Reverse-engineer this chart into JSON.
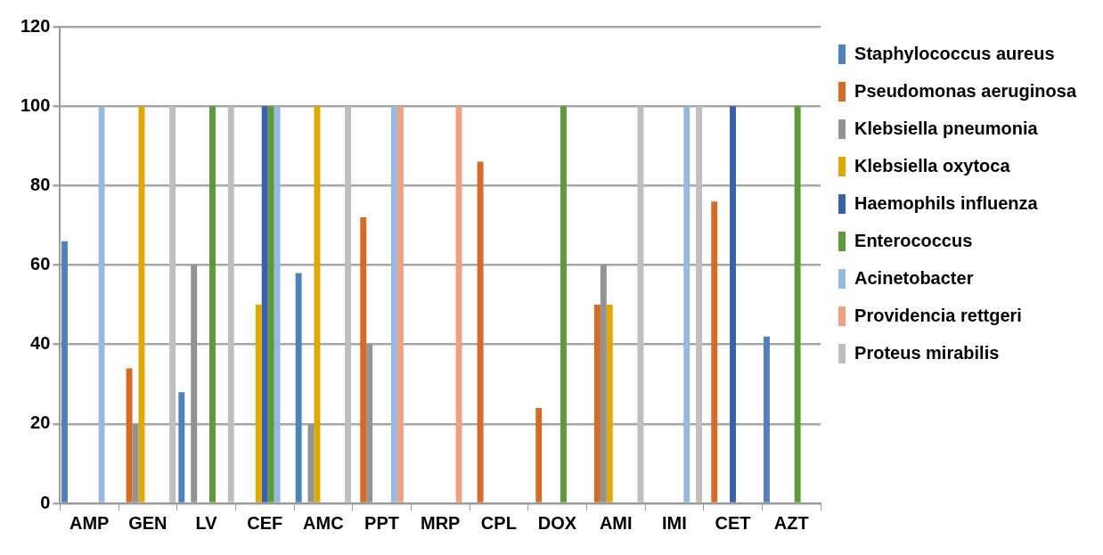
{
  "chart_data": {
    "type": "bar",
    "categories": [
      "AMP",
      "GEN",
      "LV",
      "CEF",
      "AMC",
      "PPT",
      "MRP",
      "CPL",
      "DOX",
      "AMI",
      "IMI",
      "CET",
      "AZT"
    ],
    "series": [
      {
        "name": "Staphylococcus aureus",
        "color": "#4f81bd",
        "values": [
          66,
          null,
          28,
          null,
          58,
          null,
          null,
          null,
          null,
          null,
          null,
          null,
          42
        ]
      },
      {
        "name": "Pseudomonas aeruginosa",
        "color": "#d66b27",
        "values": [
          null,
          34,
          null,
          null,
          null,
          72,
          null,
          86,
          24,
          50,
          null,
          76,
          null
        ]
      },
      {
        "name": "Klebsiella pneumonia",
        "color": "#939393",
        "values": [
          null,
          20,
          60,
          null,
          20,
          40,
          null,
          null,
          null,
          60,
          null,
          null,
          null
        ]
      },
      {
        "name": "Klebsiella oxytoca",
        "color": "#e0a800",
        "values": [
          null,
          100,
          null,
          50,
          100,
          null,
          null,
          null,
          null,
          50,
          null,
          null,
          null
        ]
      },
      {
        "name": "Haemophils influenza",
        "color": "#3a5fad",
        "values": [
          null,
          null,
          null,
          100,
          null,
          null,
          null,
          null,
          null,
          null,
          null,
          100,
          null
        ]
      },
      {
        "name": "Enterococcus",
        "color": "#5f9a3a",
        "values": [
          null,
          null,
          100,
          100,
          null,
          null,
          null,
          null,
          100,
          null,
          null,
          null,
          100
        ]
      },
      {
        "name": "Acinetobacter",
        "color": "#95b9e0",
        "values": [
          100,
          null,
          null,
          100,
          null,
          100,
          null,
          null,
          null,
          null,
          100,
          null,
          null
        ]
      },
      {
        "name": "Providencia rettgeri",
        "color": "#f2a07e",
        "values": [
          null,
          null,
          null,
          null,
          null,
          100,
          100,
          null,
          null,
          null,
          null,
          null,
          null
        ]
      },
      {
        "name": "Proteus mirabilis",
        "color": "#bfbfbf",
        "values": [
          null,
          100,
          100,
          null,
          100,
          null,
          null,
          null,
          null,
          100,
          100,
          null,
          null
        ]
      }
    ],
    "ylim": [
      0,
      120
    ],
    "yticks": [
      0,
      20,
      40,
      60,
      80,
      100,
      120
    ],
    "grid": "y",
    "legend": "right"
  }
}
